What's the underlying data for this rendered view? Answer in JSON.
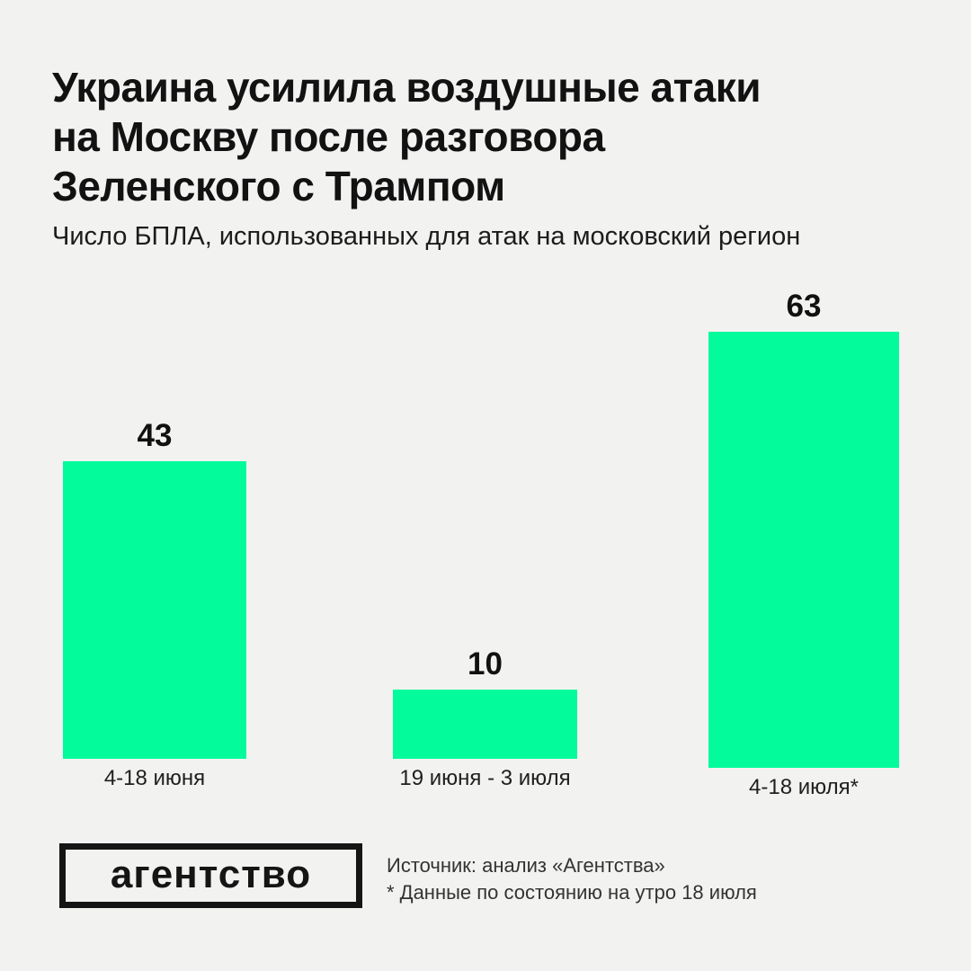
{
  "colors": {
    "background": "#F2F2F1",
    "bar": "#03FB9B",
    "title_text": "#121212",
    "muted_text": "#333333"
  },
  "header": {
    "title": "Украина усилила воздушные атаки на Москву после разговора Зеленского с Трампом",
    "title_lines": [
      "Украина усилила воздушные атаки",
      "на Москву после разговора",
      "Зеленского с Трампом"
    ],
    "subtitle": "Число БПЛА, использованных для атак на московский регион"
  },
  "chart_data": {
    "type": "bar",
    "title": "Украина усилила воздушные атаки на Москву после разговора Зеленского с Трампом",
    "subtitle": "Число БПЛА, использованных для атак на московский регион",
    "categories": [
      "4-18 июня",
      "19 июня - 3 июля",
      "4-18 июля*"
    ],
    "values": [
      43,
      10,
      63
    ],
    "value_labels": [
      "43",
      "10",
      "63"
    ],
    "bar_color": "#03FB9B",
    "xlabel": "",
    "ylabel": "",
    "ylim": [
      0,
      63
    ],
    "grid": false,
    "legend": false,
    "axes_shown": false,
    "value_labels_position": "above-bars"
  },
  "footer": {
    "logo_text": "агентство",
    "source_line": "Источник: анализ «Агентства»",
    "footnote": "* Данные по состоянию на утро 18 июля"
  }
}
